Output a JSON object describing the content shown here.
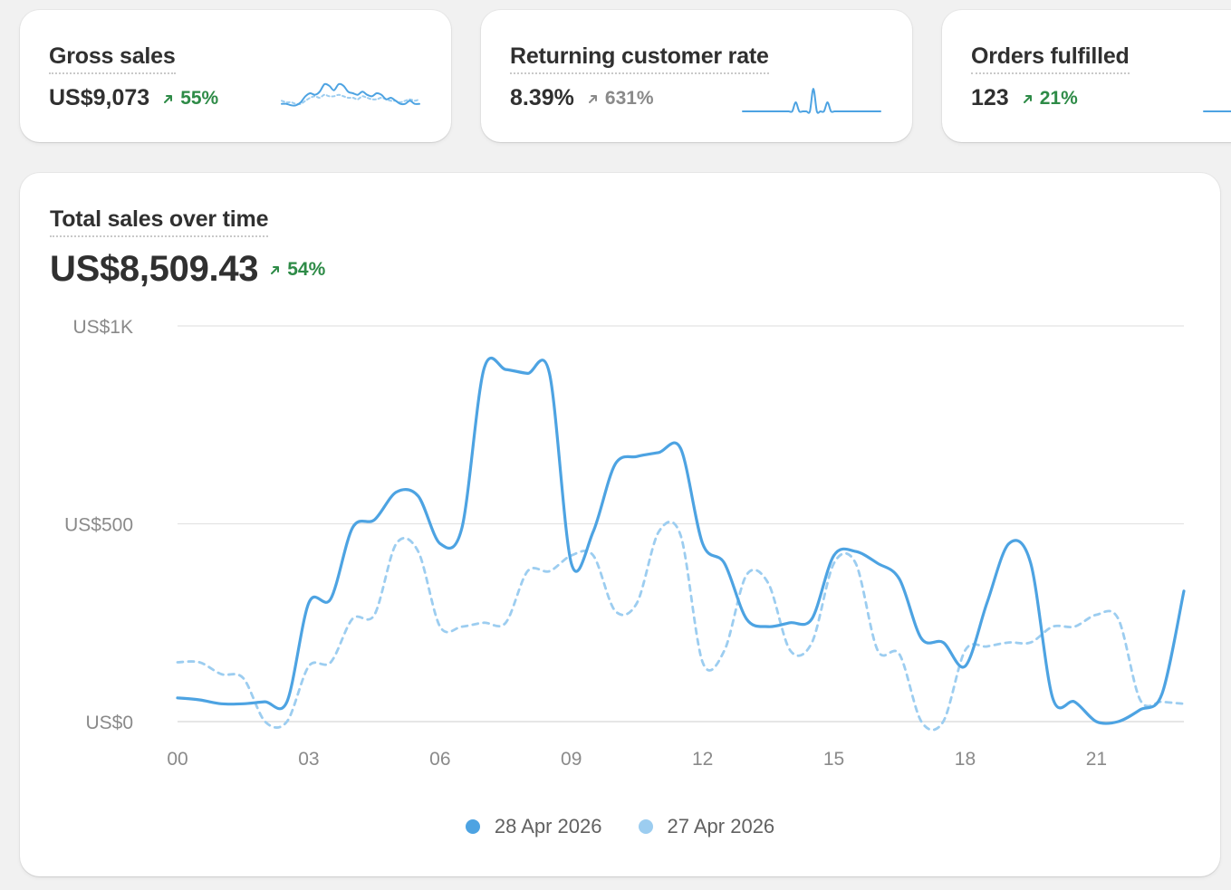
{
  "colors": {
    "primary_series": "#4da3e2",
    "comparison_series": "#9ccdf0",
    "positive_delta": "#2e8b47",
    "neutral_delta": "#8a8a8a",
    "gridline": "#e3e3e3"
  },
  "kpis": [
    {
      "title": "Gross sales",
      "value": "US$9,073",
      "delta": "55%",
      "delta_trend": "up",
      "sparkline": {
        "current": [
          5,
          5,
          4,
          4,
          6,
          10,
          12,
          11,
          13,
          18,
          17,
          14,
          18,
          17,
          13,
          12,
          11,
          13,
          11,
          10,
          12,
          11,
          8,
          9,
          7,
          5,
          5,
          7,
          5,
          5
        ],
        "previous": [
          7,
          6,
          6,
          5,
          5,
          7,
          9,
          10,
          9,
          11,
          10,
          10,
          11,
          10,
          9,
          9,
          8,
          10,
          9,
          8,
          8,
          9,
          8,
          7,
          7,
          6,
          7,
          8,
          7,
          8
        ]
      }
    },
    {
      "title": "Returning customer rate",
      "value": "8.39%",
      "delta": "631%",
      "delta_trend": "neutral",
      "sparkline": {
        "current": [
          0,
          0,
          0,
          0,
          0,
          0,
          0,
          0,
          0,
          0,
          0,
          0,
          0,
          0,
          0,
          6,
          0,
          0,
          0,
          0,
          15,
          0,
          0,
          0,
          6,
          0,
          0,
          0,
          0,
          0,
          0,
          0,
          0,
          0,
          0,
          0,
          0,
          0,
          0,
          0
        ],
        "previous": []
      }
    },
    {
      "title": "Orders fulfilled",
      "value": "123",
      "delta": "21%",
      "delta_trend": "up",
      "sparkline": {
        "current": [
          0,
          0,
          0,
          0
        ],
        "previous": []
      }
    }
  ],
  "main": {
    "title": "Total sales over time",
    "value": "US$8,509.43",
    "delta": "54%"
  },
  "chart_data": {
    "type": "line",
    "title": "Total sales over time",
    "xlabel": "",
    "ylabel": "",
    "x": [
      0,
      0.5,
      1,
      1.5,
      2,
      2.5,
      3,
      3.5,
      4,
      4.5,
      5,
      5.5,
      6,
      6.5,
      7,
      7.5,
      8,
      8.5,
      9,
      9.5,
      10,
      10.5,
      11,
      11.5,
      12,
      12.5,
      13,
      13.5,
      14,
      14.5,
      15,
      15.5,
      16,
      16.5,
      17,
      17.5,
      18,
      18.5,
      19,
      19.5,
      20,
      20.5,
      21,
      21.5,
      22,
      22.5,
      23
    ],
    "xticks": [
      0,
      3,
      6,
      9,
      12,
      15,
      18,
      21
    ],
    "xtick_labels": [
      "00",
      "03",
      "06",
      "09",
      "12",
      "15",
      "18",
      "21"
    ],
    "xlim": [
      0,
      23
    ],
    "ylim": [
      0,
      1000
    ],
    "yticks": [
      0,
      500,
      1000
    ],
    "ytick_labels": [
      "US$0",
      "US$500",
      "US$1K"
    ],
    "grid": true,
    "legend_position": "bottom-center",
    "series": [
      {
        "name": "28 Apr 2026",
        "style": "solid",
        "values": [
          60,
          55,
          45,
          45,
          50,
          50,
          300,
          310,
          490,
          510,
          580,
          570,
          450,
          490,
          890,
          890,
          880,
          880,
          400,
          480,
          650,
          670,
          680,
          690,
          450,
          400,
          260,
          240,
          250,
          260,
          420,
          430,
          400,
          360,
          210,
          200,
          140,
          300,
          450,
          400,
          60,
          50,
          0,
          0,
          30,
          70,
          330
        ]
      },
      {
        "name": "27 Apr 2026",
        "style": "dashed",
        "values": [
          150,
          150,
          120,
          110,
          0,
          0,
          140,
          150,
          260,
          270,
          450,
          430,
          240,
          240,
          250,
          250,
          380,
          380,
          420,
          420,
          280,
          300,
          480,
          470,
          150,
          180,
          370,
          350,
          180,
          200,
          400,
          400,
          180,
          170,
          0,
          0,
          180,
          190,
          200,
          200,
          240,
          240,
          270,
          260,
          55,
          50,
          45
        ]
      }
    ]
  }
}
